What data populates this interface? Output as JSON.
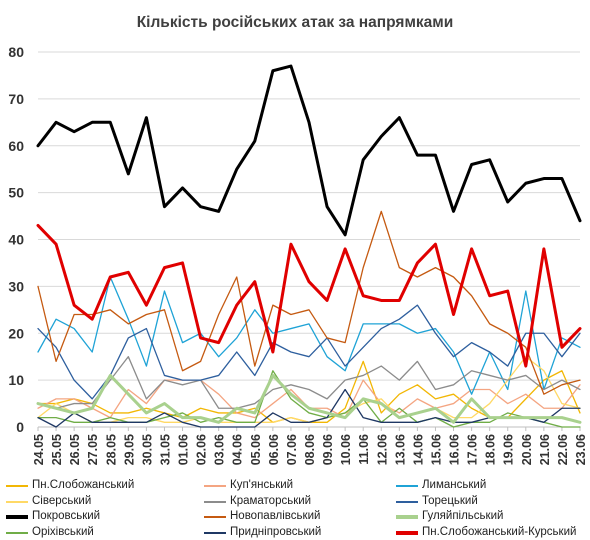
{
  "chart_data": {
    "type": "line",
    "title": "Кількість російських атак за напрямками",
    "xlabel": "",
    "ylabel": "",
    "ylim": [
      0,
      80
    ],
    "yticks": [
      0,
      10,
      20,
      30,
      40,
      50,
      60,
      70,
      80
    ],
    "grid": "horizontal",
    "legend_position": "bottom",
    "categories": [
      "24.05",
      "25.05",
      "26.05",
      "27.05",
      "28.05",
      "29.05",
      "30.05",
      "31.05",
      "01.06",
      "02.06",
      "03.06",
      "04.06",
      "05.06",
      "06.06",
      "07.06",
      "08.06",
      "09.06",
      "10.06",
      "11.06",
      "12.06",
      "13.06",
      "14.06",
      "15.06",
      "16.06",
      "17.06",
      "18.06",
      "19.06",
      "20.06",
      "21.06",
      "22.06",
      "23.06"
    ],
    "series": [
      {
        "name": "Пн.Слобожанський",
        "color": "#f2b705",
        "width": 1.3,
        "values": [
          5,
          5,
          6,
          5,
          3,
          3,
          4,
          3,
          2,
          4,
          3,
          3,
          4,
          1,
          2,
          1,
          1,
          4,
          14,
          3,
          7,
          9,
          6,
          7,
          4,
          2,
          2,
          6,
          10,
          12,
          3
        ]
      },
      {
        "name": "Куп'янський",
        "color": "#f4a582",
        "width": 1.3,
        "values": [
          4,
          6,
          6,
          4,
          2,
          8,
          5,
          10,
          10,
          10,
          7,
          3,
          2,
          5,
          8,
          4,
          4,
          2,
          10,
          5,
          3,
          6,
          4,
          5,
          8,
          8,
          5,
          7,
          4,
          4,
          9
        ]
      },
      {
        "name": "Лиманський",
        "color": "#1fa3d6",
        "width": 1.3,
        "values": [
          16,
          23,
          21,
          16,
          32,
          23,
          13,
          29,
          18,
          20,
          15,
          19,
          25,
          20,
          21,
          22,
          15,
          12,
          22,
          22,
          22,
          20,
          21,
          16,
          7,
          16,
          8,
          29,
          8,
          19,
          17
        ]
      },
      {
        "name": "Сіверський",
        "color": "#ffd966",
        "width": 1.3,
        "values": [
          2,
          5,
          3,
          1,
          1,
          2,
          2,
          1,
          1,
          2,
          1,
          1,
          1,
          1,
          2,
          1,
          2,
          3,
          5,
          6,
          2,
          3,
          4,
          2,
          2,
          5,
          10,
          15,
          12,
          5,
          4
        ]
      },
      {
        "name": "Краматорський",
        "color": "#8c8c8c",
        "width": 1.3,
        "values": [
          5,
          4,
          5,
          5,
          10,
          15,
          6,
          10,
          9,
          10,
          4,
          4,
          5,
          8,
          9,
          8,
          6,
          10,
          11,
          13,
          10,
          14,
          8,
          9,
          12,
          11,
          10,
          11,
          8,
          10,
          8
        ]
      },
      {
        "name": "Торецький",
        "color": "#2e5f9e",
        "width": 1.3,
        "values": [
          21,
          17,
          10,
          6,
          11,
          19,
          21,
          11,
          10,
          10,
          11,
          16,
          11,
          18,
          16,
          15,
          19,
          13,
          17,
          21,
          23,
          26,
          20,
          15,
          18,
          16,
          13,
          20,
          20,
          15,
          20
        ]
      },
      {
        "name": "Покровський",
        "color": "#000000",
        "width": 3,
        "values": [
          60,
          65,
          63,
          65,
          65,
          54,
          66,
          47,
          51,
          47,
          46,
          55,
          61,
          76,
          77,
          65,
          47,
          41,
          57,
          62,
          66,
          58,
          58,
          46,
          56,
          57,
          48,
          52,
          53,
          53,
          44
        ]
      },
      {
        "name": "Новопавлівський",
        "color": "#c55a11",
        "width": 1.3,
        "values": [
          30,
          14,
          24,
          24,
          25,
          22,
          24,
          25,
          12,
          14,
          24,
          32,
          13,
          26,
          24,
          25,
          19,
          18,
          34,
          46,
          34,
          32,
          34,
          32,
          28,
          22,
          20,
          17,
          7,
          9,
          10
        ]
      },
      {
        "name": "Гуляйпільський",
        "color": "#a9d18e",
        "width": 3,
        "values": [
          5,
          4,
          3,
          4,
          11,
          7,
          3,
          5,
          2,
          2,
          1,
          4,
          3,
          11,
          7,
          4,
          3,
          2,
          6,
          5,
          2,
          3,
          4,
          1,
          6,
          2,
          2,
          2,
          2,
          2,
          1
        ]
      },
      {
        "name": "Оріхівський",
        "color": "#70ad47",
        "width": 1.3,
        "values": [
          2,
          2,
          1,
          1,
          2,
          1,
          1,
          2,
          3,
          1,
          2,
          1,
          1,
          12,
          6,
          3,
          2,
          3,
          6,
          1,
          4,
          1,
          2,
          0,
          1,
          1,
          3,
          2,
          1,
          0,
          0
        ]
      },
      {
        "name": "Придніпровський",
        "color": "#1f3864",
        "width": 1.3,
        "values": [
          2,
          0,
          3,
          1,
          1,
          1,
          1,
          3,
          1,
          0,
          0,
          0,
          0,
          3,
          1,
          1,
          2,
          8,
          2,
          1,
          1,
          1,
          2,
          1,
          1,
          2,
          2,
          2,
          1,
          4,
          4
        ]
      },
      {
        "name": "Пн.Слобожанський-Курський",
        "color": "#e00000",
        "width": 3,
        "values": [
          43,
          39,
          26,
          23,
          32,
          33,
          26,
          34,
          35,
          19,
          18,
          26,
          31,
          16,
          39,
          31,
          27,
          38,
          28,
          27,
          27,
          35,
          39,
          24,
          38,
          28,
          29,
          13,
          38,
          17,
          21
        ]
      }
    ]
  }
}
